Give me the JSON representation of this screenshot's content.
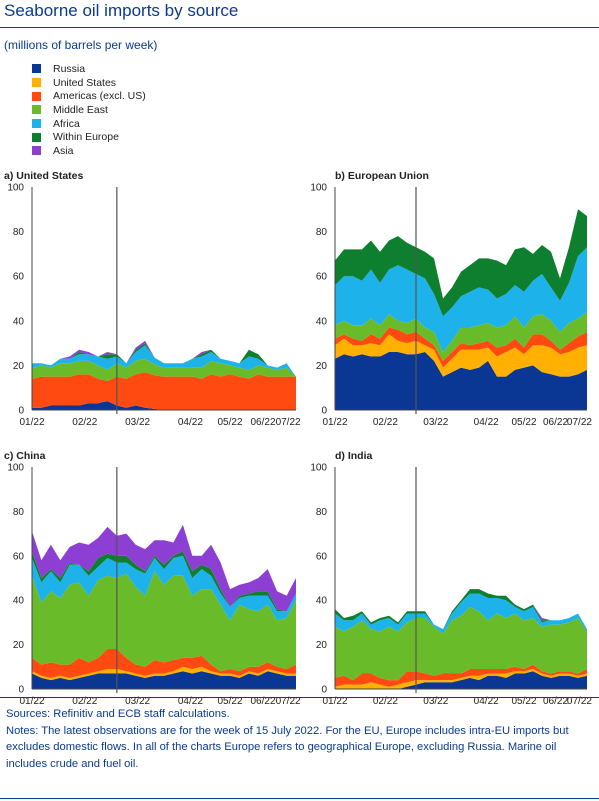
{
  "header": {
    "title": "Seaborne oil imports by source",
    "subtitle": "(millions of barrels per week)"
  },
  "legend": [
    {
      "name": "Russia",
      "color": "#0a3694"
    },
    {
      "name": "United States",
      "color": "#ffb000"
    },
    {
      "name": "Americas (excl. US)",
      "color": "#ff4b12"
    },
    {
      "name": "Middle East",
      "color": "#6abb2a"
    },
    {
      "name": "Africa",
      "color": "#1eb2ea"
    },
    {
      "name": "Within Europe",
      "color": "#0d7f2e"
    },
    {
      "name": "Asia",
      "color": "#8c3fd2"
    }
  ],
  "chart_data": [
    {
      "type": "area",
      "title": "a) United States",
      "x_ticks": [
        "01/22",
        "02/22",
        "03/22",
        "04/22",
        "05/22",
        "06/22",
        "07/22"
      ],
      "ylim": [
        0,
        100
      ],
      "y_ticks": [
        0,
        20,
        40,
        60,
        80,
        100
      ],
      "vline_week": 9,
      "series": [
        {
          "name": "Russia",
          "values": [
            1,
            1,
            2,
            2,
            2,
            2,
            3,
            3,
            4,
            2,
            1,
            2,
            1,
            0.5,
            0,
            0,
            0,
            0,
            0,
            0,
            0,
            0,
            0,
            0,
            0,
            0,
            0,
            0,
            0
          ]
        },
        {
          "name": "United States",
          "values": [
            0,
            0,
            0,
            0,
            0,
            0,
            0,
            0,
            0,
            0,
            0,
            0,
            0,
            0,
            0,
            0,
            0,
            0,
            0,
            0,
            0,
            0,
            0,
            0,
            0,
            0,
            0,
            0,
            0
          ]
        },
        {
          "name": "Americas (excl. US)",
          "values": [
            13,
            14,
            13,
            13,
            13,
            14,
            13,
            11,
            9,
            13,
            13,
            14,
            16,
            15,
            15,
            15,
            15,
            15,
            14,
            16,
            15,
            16,
            15,
            14,
            16,
            15,
            15,
            15,
            15
          ]
        },
        {
          "name": "Middle East",
          "values": [
            5,
            5,
            4,
            6,
            6,
            6,
            6,
            6,
            5,
            6,
            5,
            6,
            6,
            5,
            4,
            4,
            4,
            4,
            5,
            6,
            6,
            4,
            4,
            4,
            4,
            4,
            3,
            4,
            0
          ]
        },
        {
          "name": "Africa",
          "values": [
            2,
            1,
            1,
            2,
            2,
            3,
            3,
            4,
            5,
            3,
            2,
            4,
            6,
            3,
            2,
            2,
            2,
            4,
            5,
            4,
            2,
            2,
            2,
            6,
            3,
            1,
            1,
            2,
            0
          ]
        },
        {
          "name": "Within Europe",
          "values": [
            0,
            0,
            0,
            0,
            0,
            1,
            0,
            0,
            2,
            1,
            0,
            1,
            1,
            0,
            0,
            0,
            0,
            0,
            1,
            1,
            0,
            0,
            0,
            3,
            2,
            0,
            0,
            0,
            0
          ]
        },
        {
          "name": "Asia",
          "values": [
            0,
            0,
            0,
            0,
            1,
            1,
            1,
            0,
            1,
            0,
            0,
            1,
            1,
            0,
            0,
            0,
            0,
            0,
            1,
            0,
            0,
            0,
            0,
            0,
            0,
            0,
            0,
            0,
            0
          ]
        }
      ]
    },
    {
      "type": "area",
      "title": "b) European Union",
      "x_ticks": [
        "01/22",
        "02/22",
        "03/22",
        "04/22",
        "05/22",
        "06/22",
        "07/22"
      ],
      "ylim": [
        0,
        100
      ],
      "y_ticks": [
        0,
        20,
        40,
        60,
        80,
        100
      ],
      "vline_week": 9,
      "series": [
        {
          "name": "Russia",
          "values": [
            23,
            25,
            24,
            25,
            24,
            24,
            26,
            26,
            25,
            25,
            26,
            22,
            15,
            17,
            19,
            18,
            19,
            22,
            15,
            15,
            18,
            19,
            20,
            17,
            16,
            15,
            15,
            16,
            18
          ]
        },
        {
          "name": "United States",
          "values": [
            6,
            7,
            5,
            4,
            6,
            5,
            8,
            5,
            5,
            6,
            3,
            5,
            4,
            6,
            8,
            9,
            8,
            6,
            9,
            11,
            10,
            6,
            9,
            12,
            12,
            10,
            11,
            12,
            11
          ]
        },
        {
          "name": "Americas (excl. US)",
          "values": [
            3,
            2,
            3,
            2,
            4,
            3,
            3,
            5,
            4,
            4,
            3,
            2,
            3,
            3,
            3,
            2,
            3,
            3,
            4,
            3,
            4,
            3,
            5,
            5,
            3,
            2,
            4,
            5,
            6
          ]
        },
        {
          "name": "Middle East",
          "values": [
            6,
            6,
            6,
            7,
            7,
            6,
            6,
            4,
            5,
            6,
            5,
            6,
            4,
            5,
            7,
            8,
            8,
            8,
            9,
            9,
            10,
            9,
            8,
            9,
            9,
            8,
            9,
            8,
            9
          ]
        },
        {
          "name": "Africa",
          "values": [
            18,
            20,
            22,
            20,
            22,
            19,
            20,
            25,
            24,
            20,
            22,
            17,
            16,
            15,
            14,
            16,
            17,
            15,
            13,
            14,
            14,
            16,
            16,
            18,
            15,
            14,
            18,
            28,
            29
          ]
        },
        {
          "name": "Within Europe",
          "values": [
            11,
            12,
            12,
            14,
            13,
            14,
            13,
            13,
            12,
            12,
            12,
            16,
            8,
            9,
            11,
            12,
            13,
            14,
            17,
            13,
            16,
            20,
            12,
            13,
            16,
            10,
            16,
            21,
            14
          ]
        },
        {
          "name": "Asia",
          "values": [
            0,
            0,
            0,
            0,
            0,
            0,
            0,
            0,
            0,
            0,
            0,
            0,
            0,
            0,
            0,
            0,
            0,
            0,
            0,
            0,
            0,
            0,
            0,
            0,
            0,
            0,
            0,
            0,
            0
          ]
        }
      ]
    },
    {
      "type": "area",
      "title": "c) China",
      "x_ticks": [
        "01/22",
        "02/22",
        "03/22",
        "04/22",
        "05/22",
        "06/22",
        "07/22"
      ],
      "ylim": [
        0,
        100
      ],
      "y_ticks": [
        0,
        20,
        40,
        60,
        80,
        100
      ],
      "vline_week": 9,
      "series": [
        {
          "name": "Russia",
          "values": [
            7,
            5,
            4,
            5,
            4,
            5,
            6,
            7,
            7,
            7,
            7,
            6,
            5,
            6,
            6,
            7,
            8,
            7,
            8,
            7,
            6,
            6,
            5,
            7,
            6,
            8,
            7,
            6,
            6
          ]
        },
        {
          "name": "United States",
          "values": [
            1,
            1,
            1,
            1,
            1,
            1,
            1,
            1,
            2,
            2,
            1,
            1,
            1,
            1,
            1,
            1,
            2,
            2,
            2,
            1,
            1,
            1,
            1,
            1,
            1,
            1,
            1,
            1,
            1
          ]
        },
        {
          "name": "Americas (excl. US)",
          "values": [
            6,
            5,
            7,
            5,
            6,
            8,
            5,
            6,
            9,
            9,
            6,
            4,
            4,
            6,
            5,
            5,
            4,
            5,
            5,
            3,
            1,
            2,
            2,
            2,
            3,
            3,
            2,
            2,
            4
          ]
        },
        {
          "name": "Middle East",
          "values": [
            37,
            28,
            32,
            30,
            36,
            34,
            30,
            35,
            33,
            32,
            38,
            35,
            32,
            40,
            35,
            38,
            37,
            28,
            30,
            34,
            30,
            22,
            30,
            26,
            25,
            26,
            21,
            23,
            29
          ]
        },
        {
          "name": "Africa",
          "values": [
            8,
            9,
            9,
            7,
            9,
            8,
            9,
            6,
            8,
            7,
            5,
            8,
            10,
            6,
            7,
            8,
            9,
            8,
            9,
            6,
            5,
            6,
            3,
            6,
            7,
            4,
            4,
            3,
            3
          ]
        },
        {
          "name": "Within Europe",
          "values": [
            3,
            2,
            1,
            2,
            1,
            0,
            2,
            4,
            2,
            3,
            3,
            2,
            1,
            1,
            2,
            1,
            2,
            3,
            2,
            3,
            2,
            0,
            1,
            1,
            2,
            2,
            1,
            0,
            0
          ]
        },
        {
          "name": "Asia",
          "values": [
            9,
            8,
            11,
            8,
            7,
            10,
            12,
            9,
            12,
            9,
            10,
            9,
            10,
            7,
            11,
            6,
            12,
            7,
            4,
            11,
            12,
            8,
            5,
            5,
            6,
            10,
            8,
            7,
            7
          ]
        }
      ]
    },
    {
      "type": "area",
      "title": "d) India",
      "x_ticks": [
        "01/22",
        "02/22",
        "03/22",
        "04/22",
        "05/22",
        "06/22",
        "07/22"
      ],
      "ylim": [
        0,
        100
      ],
      "y_ticks": [
        0,
        20,
        40,
        60,
        80,
        100
      ],
      "vline_week": 9,
      "series": [
        {
          "name": "Russia",
          "values": [
            0,
            0,
            0,
            0,
            0,
            0,
            0,
            0,
            1,
            2,
            3,
            3,
            3,
            3,
            4,
            5,
            4,
            6,
            6,
            5,
            7,
            7,
            8,
            6,
            5,
            6,
            6,
            5,
            6
          ]
        },
        {
          "name": "United States",
          "values": [
            1,
            2,
            2,
            2,
            3,
            2,
            1,
            2,
            2,
            2,
            1,
            1,
            1,
            1,
            1,
            1,
            2,
            1,
            1,
            2,
            1,
            1,
            1,
            1,
            1,
            1,
            1,
            1,
            1
          ]
        },
        {
          "name": "Americas (excl. US)",
          "values": [
            4,
            4,
            2,
            5,
            4,
            3,
            3,
            2,
            5,
            4,
            3,
            2,
            3,
            3,
            2,
            3,
            3,
            2,
            2,
            2,
            2,
            1,
            2,
            1,
            1,
            1,
            1,
            1,
            2
          ]
        },
        {
          "name": "Middle East",
          "values": [
            23,
            20,
            24,
            24,
            20,
            21,
            24,
            22,
            22,
            24,
            25,
            22,
            18,
            24,
            26,
            28,
            26,
            22,
            25,
            23,
            24,
            22,
            21,
            20,
            22,
            21,
            22,
            25,
            17
          ]
        },
        {
          "name": "Africa",
          "values": [
            6,
            5,
            3,
            3,
            2,
            5,
            4,
            3,
            4,
            2,
            2,
            1,
            2,
            3,
            6,
            6,
            8,
            10,
            7,
            8,
            3,
            4,
            5,
            2,
            2,
            2,
            2,
            2,
            1
          ]
        },
        {
          "name": "Within Europe",
          "values": [
            2,
            1,
            2,
            1,
            1,
            1,
            1,
            1,
            1,
            1,
            1,
            0,
            0,
            1,
            1,
            2,
            2,
            2,
            1,
            2,
            1,
            1,
            1,
            1,
            0,
            0,
            0,
            0,
            0
          ]
        },
        {
          "name": "Asia",
          "values": [
            0,
            0,
            0,
            0,
            0,
            0,
            0,
            0,
            0,
            0,
            0,
            0,
            0,
            0,
            0,
            0,
            0,
            0,
            0,
            0,
            0,
            0,
            0,
            1,
            0,
            0,
            0,
            0,
            0
          ]
        }
      ]
    }
  ],
  "footer": {
    "sources": "Sources: Refinitiv and ECB staff calculations.",
    "notes": "Notes: The latest observations are for the week of 15 July 2022. For the EU, Europe includes intra-EU imports but excludes domestic flows. In all of the charts Europe refers to geographical Europe, excluding Russia. Marine oil includes crude and fuel oil."
  }
}
